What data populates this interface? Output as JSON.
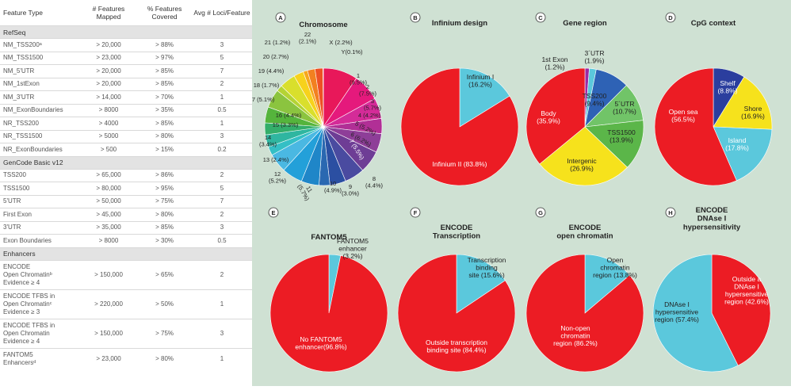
{
  "table": {
    "headers": [
      "Feature Type",
      "# Features\nMapped",
      "% Features\nCovered",
      "Avg # Loci/Feature"
    ],
    "sections": [
      {
        "title": "RefSeq",
        "rows": [
          [
            "NM_TSS200ᵃ",
            "> 20,000",
            "> 88%",
            "3"
          ],
          [
            "NM_TSS1500",
            "> 23,000",
            "> 97%",
            "5"
          ],
          [
            "NM_5'UTR",
            "> 20,000",
            "> 85%",
            "7"
          ],
          [
            "NM_1stExon",
            "> 20,000",
            "> 85%",
            "2"
          ],
          [
            "NM_3'UTR",
            "> 14,000",
            "> 70%",
            "1"
          ],
          [
            "NM_ExonBoundaries",
            "> 8000",
            "> 35%",
            "0.5"
          ],
          [
            "NR_TSS200",
            "> 4000",
            "> 85%",
            "1"
          ],
          [
            "NR_TSS1500",
            "> 5000",
            "> 80%",
            "3"
          ],
          [
            "NR_ExonBoundaries",
            "> 500",
            "> 15%",
            "0.2"
          ]
        ]
      },
      {
        "title": "GenCode Basic v12",
        "rows": [
          [
            "TSS200",
            "> 65,000",
            "> 86%",
            "2"
          ],
          [
            "TSS1500",
            "> 80,000",
            "> 95%",
            "5"
          ],
          [
            "5'UTR",
            "> 50,000",
            "> 75%",
            "7"
          ],
          [
            "First Exon",
            "> 45,000",
            "> 80%",
            "2"
          ],
          [
            "3'UTR",
            "> 35,000",
            "> 85%",
            "3"
          ],
          [
            "Exon Boundaries",
            "> 8000",
            "> 30%",
            "0.5"
          ]
        ]
      },
      {
        "title": "Enhancers",
        "rows": [
          [
            "ENCODE\nOpen Chromatinᵇ\nEvidence ≥ 4",
            "> 150,000",
            "> 65%",
            "2"
          ],
          [
            "ENCODE TFBS in\nOpen Chromatinᶜ\nEvidence ≥ 3",
            "> 220,000",
            "> 50%",
            "1"
          ],
          [
            "ENCODE TFBS in\nOpen Chromatin\nEvidence ≥ 4",
            "> 150,000",
            "> 75%",
            "3"
          ],
          [
            "FANTOM5\nEnhancersᵈ",
            "> 23,000",
            "> 80%",
            "1"
          ]
        ]
      }
    ]
  },
  "chart_data": [
    {
      "type": "pie",
      "panel": "A",
      "title": "Chromosome",
      "slices": [
        {
          "label": "1",
          "value": 9.5,
          "color": "#e8185a"
        },
        {
          "label": "2",
          "value": 7.5,
          "color": "#e5197c"
        },
        {
          "label": "3",
          "value": 5.7,
          "color": "#d42b98"
        },
        {
          "label": "4",
          "value": 4.2,
          "color": "#b12f96"
        },
        {
          "label": "5",
          "value": 5.2,
          "color": "#8e3e98"
        },
        {
          "label": "6",
          "value": 6.2,
          "color": "#6e3d95"
        },
        {
          "label": "7",
          "value": 5.5,
          "color": "#4a4ba0"
        },
        {
          "label": "8",
          "value": 4.4,
          "color": "#2b4fa2"
        },
        {
          "label": "9",
          "value": 3.0,
          "color": "#2a68b1"
        },
        {
          "label": "10",
          "value": 4.9,
          "color": "#1f86c8"
        },
        {
          "label": "11",
          "value": 5.7,
          "color": "#23a0d9"
        },
        {
          "label": "12",
          "value": 5.2,
          "color": "#4ab8e2"
        },
        {
          "label": "13",
          "value": 2.4,
          "color": "#34bfc5"
        },
        {
          "label": "14",
          "value": 3.4,
          "color": "#2fb6a0"
        },
        {
          "label": "15",
          "value": 3.3,
          "color": "#34ae6a"
        },
        {
          "label": "16",
          "value": 4.4,
          "color": "#55b43c"
        },
        {
          "label": "17",
          "value": 5.1,
          "color": "#8bc43f"
        },
        {
          "label": "18",
          "value": 1.7,
          "color": "#b4d334"
        },
        {
          "label": "19",
          "value": 4.4,
          "color": "#d9df2c"
        },
        {
          "label": "20",
          "value": 2.7,
          "color": "#f7d21c"
        },
        {
          "label": "21",
          "value": 1.2,
          "color": "#f6a81c"
        },
        {
          "label": "22",
          "value": 2.1,
          "color": "#f28020"
        },
        {
          "label": "X",
          "value": 2.2,
          "color": "#ee5124"
        },
        {
          "label": "Y",
          "value": 0.1,
          "color": "#e82e2a"
        }
      ]
    },
    {
      "type": "pie",
      "panel": "B",
      "title": "Infinium design",
      "slices": [
        {
          "label": "Infinium I",
          "value": 16.2,
          "color": "#5bc8dc"
        },
        {
          "label": "Infinium II",
          "value": 83.8,
          "color": "#ec1c24"
        }
      ]
    },
    {
      "type": "pie",
      "panel": "C",
      "title": "Gene region",
      "slices": [
        {
          "label": "1st Exon",
          "value": 1.2,
          "color": "#9c2aa4"
        },
        {
          "label": "3'UTR",
          "value": 1.9,
          "color": "#5bc8dc"
        },
        {
          "label": "TSS200",
          "value": 9.4,
          "color": "#2e62b5"
        },
        {
          "label": "5'UTR",
          "value": 10.7,
          "color": "#71c468"
        },
        {
          "label": "TSS1500",
          "value": 13.9,
          "color": "#5bb649"
        },
        {
          "label": "Intergenic",
          "value": 26.9,
          "color": "#f6e21c"
        },
        {
          "label": "Body",
          "value": 35.9,
          "color": "#ec1c24"
        }
      ]
    },
    {
      "type": "pie",
      "panel": "D",
      "title": "CpG context",
      "slices": [
        {
          "label": "Shelf",
          "value": 8.8,
          "color": "#2b3e9e"
        },
        {
          "label": "Shore",
          "value": 16.9,
          "color": "#f6e21c"
        },
        {
          "label": "Island",
          "value": 17.8,
          "color": "#5bc8dc"
        },
        {
          "label": "Open sea",
          "value": 56.5,
          "color": "#ec1c24"
        }
      ]
    },
    {
      "type": "pie",
      "panel": "E",
      "title": "FANTOM5",
      "slices": [
        {
          "label": "FANTOM5 enhancer",
          "value": 3.2,
          "color": "#5bc8dc"
        },
        {
          "label": "No FANTOM5 enhancer",
          "value": 96.8,
          "color": "#ec1c24"
        }
      ]
    },
    {
      "type": "pie",
      "panel": "F",
      "title": "ENCODE\nTranscription",
      "slices": [
        {
          "label": "Transcription binding site",
          "value": 15.6,
          "color": "#5bc8dc"
        },
        {
          "label": "Outside transcription binding site",
          "value": 84.4,
          "color": "#ec1c24"
        }
      ]
    },
    {
      "type": "pie",
      "panel": "G",
      "title": "ENCODE\nopen chromatin",
      "slices": [
        {
          "label": "Open chromatin region",
          "value": 13.8,
          "color": "#5bc8dc"
        },
        {
          "label": "Non-open chromatin region",
          "value": 86.2,
          "color": "#ec1c24"
        }
      ]
    },
    {
      "type": "pie",
      "panel": "H",
      "title": "ENCODE\nDNAse I\nhypersensitivity",
      "slices": [
        {
          "label": "Outside a DNAse I hypersensitive region",
          "value": 42.6,
          "color": "#ec1c24"
        },
        {
          "label": "DNAse I hypersensitive region",
          "value": 57.4,
          "color": "#5bc8dc"
        }
      ]
    }
  ],
  "chart_labels": {
    "A": [
      "1\n(9.5%)",
      "2\n(7.5%)",
      "3\n(5.7%)",
      "4 (4.2%)",
      "5 (5.2%)",
      "6 (6.2%)",
      "7 (5.5%)",
      "8\n(4.4%)",
      "9\n(3.0%)",
      "10\n(4.9%)",
      "11\n(5.7%)",
      "12\n(5.2%)",
      "13 (2.4%)",
      "14\n(3.4%)",
      "15 (3.3%)",
      "16 (4.4%)",
      "17 (5.1%)",
      "18 (1.7%)",
      "19 (4.4%)",
      "20 (2.7%)",
      "21 (1.2%)",
      "22\n(2.1%)",
      "X (2.2%)",
      "Y(0.1%)"
    ],
    "B": [
      "Infinium I\n(16.2%)",
      "Infinium II (83.8%)"
    ],
    "C": [
      "1st Exon\n(1.2%)",
      "3´UTR\n(1.9%)",
      "TSS200\n(9.4%)",
      "5´UTR\n(10.7%)",
      "TSS1500\n(13.9%)",
      "Intergenic\n(26.9%)",
      "Body\n(35.9%)"
    ],
    "D": [
      "Shelf\n(8.8%)",
      "Shore\n(16.9%)",
      "Island\n(17.8%)",
      "Open sea\n(56.5%)"
    ],
    "E": [
      "FANTOM5\nenhancer\n(3.2%)",
      "No FANTOM5\nenhancer(96.8%)"
    ],
    "F": [
      "Transcription\nbinding\nsite (15.6%)",
      "Outside transcription\nbinding site (84.4%)"
    ],
    "G": [
      "Open\nchromatin\nregion (13.8%)",
      "Non-open\nchromatin\nregion (86.2%)"
    ],
    "H": [
      "Outside a\nDNAse I\nhypersensitive\nregion (42.6%)",
      "DNAse I\nhypersensitive\nregion (57.4%)"
    ]
  }
}
